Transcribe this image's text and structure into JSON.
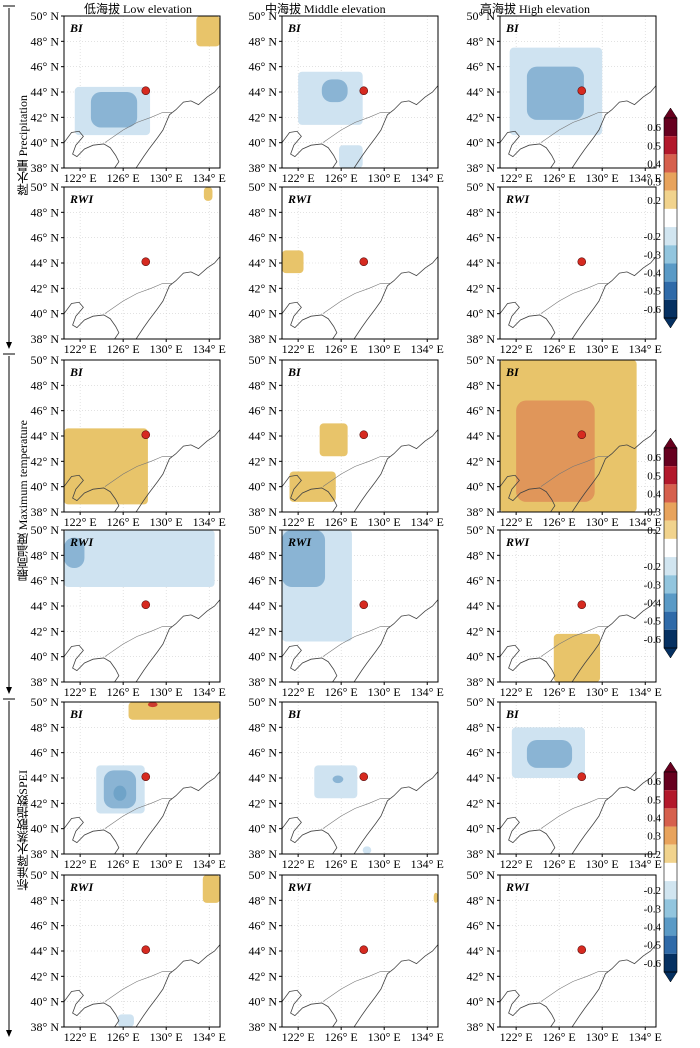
{
  "columns": [
    "低海拔 Low elevation",
    "中海拔 Middle elevation",
    "高海拔 High elevation"
  ],
  "row_groups": [
    "降水量 Precipitation",
    "最高温度 Maximum temperature",
    "标准降水蒸散指数SPEI"
  ],
  "panel_labels": [
    "BI",
    "RWI"
  ],
  "colorbar_ticks": [
    "0.6",
    "0.5",
    "0.4",
    "0.3",
    "0.2",
    "-0.2",
    "-0.3",
    "-0.4",
    "-0.5",
    "-0.6"
  ],
  "colors": {
    "pos_light": "#e8c46a",
    "pos_mid": "#e0965a",
    "pos_strong": "#cc3b2e",
    "neg_light": "#cfe3f1",
    "neg_mid": "#8ab4d4",
    "neg_strong": "#6fa3c8",
    "site": "#d62a20",
    "colorbar": [
      "#67001f",
      "#b2182b",
      "#d6604d",
      "#e8a35c",
      "#f1d38d",
      "#ffffff",
      "#d1e5f0",
      "#92c5de",
      "#5a9ac6",
      "#2f6aa8",
      "#053061"
    ]
  },
  "chart_data": {
    "type": "heatmap",
    "description_axes": {
      "x_ticks": [
        "122° E",
        "126° E",
        "130° E",
        "134° E"
      ],
      "y_ticks": [
        "38° N",
        "40° N",
        "42° N",
        "44° N",
        "46° N",
        "48° N",
        "50° N"
      ],
      "xlim": [
        120.5,
        135
      ],
      "ylim": [
        38,
        50
      ]
    },
    "site": {
      "lon": 128.1,
      "lat": 44.1
    },
    "panels": [
      {
        "row": "Precipitation",
        "col": "Low",
        "label": "BI",
        "regions": [
          {
            "sign": "neg",
            "level": "light",
            "lon": [
              121.5,
              128.5
            ],
            "lat": [
              40.6,
              44.4
            ]
          },
          {
            "sign": "neg",
            "level": "mid",
            "lon": [
              123,
              127.3
            ],
            "lat": [
              41.2,
              44
            ]
          },
          {
            "sign": "pos",
            "level": "light",
            "lon": [
              132.8,
              135
            ],
            "lat": [
              47.6,
              50
            ]
          }
        ]
      },
      {
        "row": "Precipitation",
        "col": "Middle",
        "label": "BI",
        "regions": [
          {
            "sign": "neg",
            "level": "light",
            "lon": [
              122,
              128
            ],
            "lat": [
              41.4,
              45.6
            ]
          },
          {
            "sign": "neg",
            "level": "mid",
            "lon": [
              124.2,
              126.6
            ],
            "lat": [
              43.2,
              45
            ]
          },
          {
            "sign": "neg",
            "level": "light",
            "lon": [
              125.8,
              128
            ],
            "lat": [
              38,
              39.8
            ]
          }
        ]
      },
      {
        "row": "Precipitation",
        "col": "High",
        "label": "BI",
        "regions": [
          {
            "sign": "neg",
            "level": "light",
            "lon": [
              121.4,
              130
            ],
            "lat": [
              40.6,
              47.5
            ]
          },
          {
            "sign": "neg",
            "level": "mid",
            "lon": [
              123,
              128.3
            ],
            "lat": [
              41.8,
              46
            ]
          }
        ]
      },
      {
        "row": "Precipitation",
        "col": "Low",
        "label": "RWI",
        "regions": [
          {
            "sign": "pos",
            "level": "light",
            "lon": [
              133.5,
              134.3
            ],
            "lat": [
              48.9,
              50
            ]
          }
        ]
      },
      {
        "row": "Precipitation",
        "col": "Middle",
        "label": "RWI",
        "regions": [
          {
            "sign": "pos",
            "level": "light",
            "lon": [
              120.5,
              122.5
            ],
            "lat": [
              43.2,
              45
            ]
          }
        ]
      },
      {
        "row": "Precipitation",
        "col": "High",
        "label": "RWI",
        "regions": []
      },
      {
        "row": "Maximum temperature",
        "col": "Low",
        "label": "BI",
        "regions": [
          {
            "sign": "pos",
            "level": "light",
            "lon": [
              120.5,
              128.3
            ],
            "lat": [
              38.6,
              44.6
            ]
          }
        ]
      },
      {
        "row": "Maximum temperature",
        "col": "Middle",
        "label": "BI",
        "regions": [
          {
            "sign": "pos",
            "level": "light",
            "lon": [
              124,
              126.6
            ],
            "lat": [
              42.4,
              45
            ]
          },
          {
            "sign": "pos",
            "level": "light",
            "lon": [
              121.2,
              125.5
            ],
            "lat": [
              38.8,
              41.2
            ]
          }
        ]
      },
      {
        "row": "Maximum temperature",
        "col": "High",
        "label": "BI",
        "regions": [
          {
            "sign": "pos",
            "level": "light",
            "lon": [
              120.5,
              133.2
            ],
            "lat": [
              38,
              50
            ]
          },
          {
            "sign": "pos",
            "level": "mid",
            "lon": [
              122,
              129.3
            ],
            "lat": [
              38.8,
              46.8
            ]
          }
        ]
      },
      {
        "row": "Maximum temperature",
        "col": "Low",
        "label": "RWI",
        "regions": [
          {
            "sign": "neg",
            "level": "light",
            "lon": [
              120.5,
              134.5
            ],
            "lat": [
              45.5,
              50
            ]
          },
          {
            "sign": "neg",
            "level": "mid",
            "lon": [
              120.5,
              122.4
            ],
            "lat": [
              47,
              49.4
            ]
          }
        ]
      },
      {
        "row": "Maximum temperature",
        "col": "Middle",
        "label": "RWI",
        "regions": [
          {
            "sign": "neg",
            "level": "light",
            "lon": [
              120.5,
              127
            ],
            "lat": [
              41.2,
              50
            ]
          },
          {
            "sign": "neg",
            "level": "mid",
            "lon": [
              120.5,
              124.5
            ],
            "lat": [
              45.5,
              50
            ]
          }
        ]
      },
      {
        "row": "Maximum temperature",
        "col": "High",
        "label": "RWI",
        "regions": [
          {
            "sign": "pos",
            "level": "light",
            "lon": [
              125.5,
              129.8
            ],
            "lat": [
              38,
              41.8
            ]
          }
        ]
      },
      {
        "row": "SPEI",
        "col": "Low",
        "label": "BI",
        "regions": [
          {
            "sign": "pos",
            "level": "light",
            "lon": [
              126.5,
              135
            ],
            "lat": [
              48.6,
              50
            ]
          },
          {
            "sign": "pos",
            "level": "strong",
            "lon": [
              128.3,
              129.2
            ],
            "lat": [
              49.6,
              50
            ]
          },
          {
            "sign": "neg",
            "level": "light",
            "lon": [
              123.5,
              128
            ],
            "lat": [
              41.2,
              45
            ]
          },
          {
            "sign": "neg",
            "level": "mid",
            "lon": [
              124.2,
              127.2
            ],
            "lat": [
              41.6,
              44.6
            ]
          },
          {
            "sign": "neg",
            "level": "strong",
            "lon": [
              125.1,
              126.3
            ],
            "lat": [
              42.2,
              43.4
            ]
          }
        ]
      },
      {
        "row": "SPEI",
        "col": "Middle",
        "label": "BI",
        "regions": [
          {
            "sign": "neg",
            "level": "light",
            "lon": [
              123.5,
              127.5
            ],
            "lat": [
              42.4,
              45
            ]
          },
          {
            "sign": "neg",
            "level": "mid",
            "lon": [
              125.2,
              126.2
            ],
            "lat": [
              43.6,
              44.2
            ]
          },
          {
            "sign": "neg",
            "level": "light",
            "lon": [
              128,
              128.8
            ],
            "lat": [
              38,
              38.6
            ]
          }
        ]
      },
      {
        "row": "SPEI",
        "col": "High",
        "label": "BI",
        "regions": [
          {
            "sign": "neg",
            "level": "light",
            "lon": [
              121.6,
              128.4
            ],
            "lat": [
              44,
              48
            ]
          },
          {
            "sign": "neg",
            "level": "mid",
            "lon": [
              123,
              127.2
            ],
            "lat": [
              44.8,
              47
            ]
          }
        ]
      },
      {
        "row": "SPEI",
        "col": "Low",
        "label": "RWI",
        "regions": [
          {
            "sign": "pos",
            "level": "light",
            "lon": [
              133.4,
              135
            ],
            "lat": [
              47.8,
              50
            ]
          },
          {
            "sign": "neg",
            "level": "light",
            "lon": [
              125.5,
              127
            ],
            "lat": [
              38,
              39
            ]
          }
        ]
      },
      {
        "row": "SPEI",
        "col": "Middle",
        "label": "RWI",
        "regions": [
          {
            "sign": "pos",
            "level": "light",
            "lon": [
              134.6,
              135
            ],
            "lat": [
              47.8,
              48.6
            ]
          }
        ]
      },
      {
        "row": "SPEI",
        "col": "High",
        "label": "RWI",
        "regions": []
      }
    ]
  }
}
